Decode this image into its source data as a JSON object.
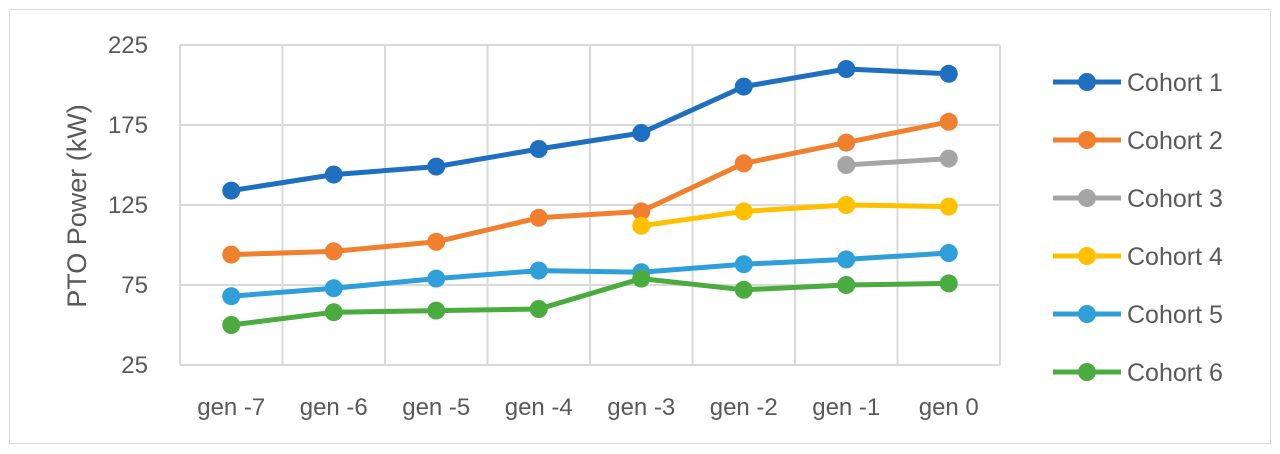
{
  "chart_data": {
    "type": "line",
    "title": "",
    "xlabel": "",
    "ylabel": "PTO Power (kW)",
    "categories": [
      "gen -7",
      "gen -6",
      "gen -5",
      "gen -4",
      "gen -3",
      "gen -2",
      "gen -1",
      "gen 0"
    ],
    "ylim": [
      25,
      225
    ],
    "yticks": [
      "25",
      "75",
      "125",
      "175",
      "225"
    ],
    "grid": true,
    "legend_position": "right",
    "series": [
      {
        "name": "Cohort 1",
        "color": "#1f6fc0",
        "values": [
          134,
          144,
          149,
          160,
          170,
          199,
          210,
          207
        ]
      },
      {
        "name": "Cohort 2",
        "color": "#f07f2e",
        "values": [
          94,
          96,
          102,
          117,
          121,
          151,
          164,
          177
        ]
      },
      {
        "name": "Cohort 3",
        "color": "#a5a5a5",
        "values": [
          null,
          null,
          null,
          null,
          null,
          null,
          150,
          154
        ]
      },
      {
        "name": "Cohort 4",
        "color": "#ffc000",
        "values": [
          null,
          null,
          null,
          null,
          112,
          121,
          125,
          124
        ]
      },
      {
        "name": "Cohort 5",
        "color": "#2e9fd9",
        "values": [
          68,
          73,
          79,
          84,
          83,
          88,
          91,
          95
        ]
      },
      {
        "name": "Cohort 6",
        "color": "#4aab3e",
        "values": [
          50,
          58,
          59,
          60,
          79,
          72,
          75,
          76
        ]
      }
    ]
  }
}
